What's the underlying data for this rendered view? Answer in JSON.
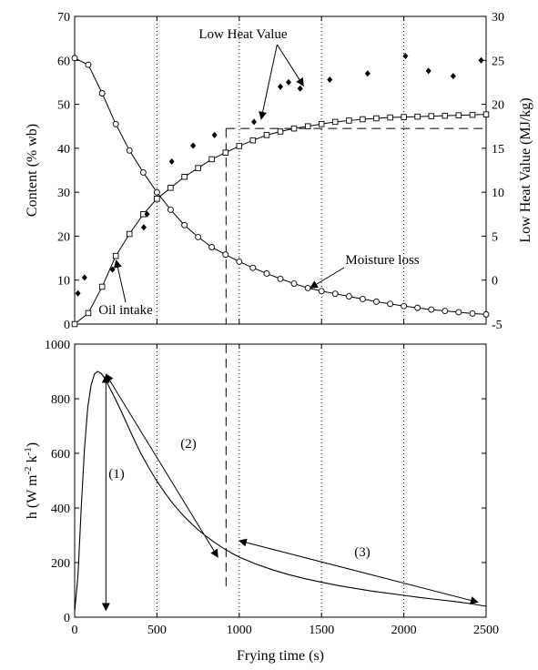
{
  "chart_data": [
    {
      "type": "line",
      "title": "",
      "xlabel": "",
      "ylabel": "Content (% wb)",
      "y2label": "Low Heat Value (MJ/kg)",
      "xlim": [
        0,
        2500
      ],
      "ylim": [
        0,
        70
      ],
      "y2lim": [
        -5,
        30
      ],
      "x_ticks": [
        "0",
        "500",
        "1000",
        "1500",
        "2000",
        "2500"
      ],
      "y_ticks": [
        "0",
        "10",
        "20",
        "30",
        "40",
        "50",
        "60",
        "70"
      ],
      "y2_ticks": [
        "-5",
        "0",
        "5",
        "10",
        "15",
        "20",
        "25",
        "30"
      ],
      "grid": "vertical dotted lines at x = 500, 1000, 1500, 2000",
      "series": [
        {
          "name": "Moisture loss",
          "marker": "circle",
          "axis": "left",
          "x": [
            0,
            83,
            167,
            250,
            333,
            417,
            500,
            583,
            667,
            750,
            833,
            917,
            1000,
            1083,
            1167,
            1250,
            1333,
            1417,
            1500,
            1583,
            1667,
            1750,
            1833,
            1917,
            2000,
            2083,
            2167,
            2250,
            2333,
            2417,
            2500
          ],
          "values": [
            60.5,
            59.0,
            52.5,
            45.5,
            39.5,
            34.5,
            30.0,
            26.0,
            22.5,
            19.8,
            17.5,
            15.8,
            14.2,
            12.8,
            11.5,
            10.3,
            9.2,
            8.2,
            7.5,
            6.9,
            6.3,
            5.7,
            5.1,
            4.6,
            4.1,
            3.7,
            3.3,
            3.0,
            2.7,
            2.4,
            2.2
          ]
        },
        {
          "name": "Oil intake",
          "marker": "square",
          "axis": "left",
          "x": [
            0,
            83,
            167,
            250,
            333,
            417,
            500,
            583,
            667,
            750,
            833,
            917,
            1000,
            1083,
            1167,
            1250,
            1333,
            1417,
            1500,
            1583,
            1667,
            1750,
            1833,
            1917,
            2000,
            2083,
            2167,
            2250,
            2333,
            2417,
            2500
          ],
          "values": [
            0,
            2.5,
            8.5,
            15.5,
            20.5,
            25.0,
            28.5,
            31.0,
            33.5,
            35.5,
            37.5,
            39.0,
            40.5,
            41.8,
            43.0,
            43.8,
            44.5,
            45.0,
            45.5,
            46.0,
            46.3,
            46.6,
            46.8,
            47.0,
            47.1,
            47.2,
            47.3,
            47.4,
            47.5,
            47.6,
            47.7
          ]
        },
        {
          "name": "Low Heat Value",
          "marker": "diamond",
          "axis": "right",
          "x": [
            20,
            60,
            230,
            420,
            440,
            590,
            720,
            850,
            1090,
            1250,
            1300,
            1370,
            1550,
            1780,
            2010,
            2150,
            2300,
            2470
          ],
          "values": [
            -1.5,
            0.3,
            1.2,
            6.0,
            7.5,
            13.5,
            15.3,
            16.5,
            18.0,
            22.0,
            22.5,
            21.8,
            22.8,
            23.5,
            25.5,
            23.8,
            23.2,
            25.0
          ]
        }
      ],
      "reference_lines": {
        "vertical_x": 920,
        "horizontal_y": 44.5
      },
      "annotations": [
        {
          "text": "Low Heat Value",
          "points_to": [
            [
              1100,
              18.0
            ],
            [
              1390,
              21.8
            ]
          ]
        },
        {
          "text": "Moisture loss",
          "points_to": [
            [
              1420,
              8.0
            ]
          ]
        },
        {
          "text": "Oil intake",
          "points_to": [
            [
              230,
              17.0
            ]
          ]
        }
      ]
    },
    {
      "type": "line",
      "title": "",
      "xlabel": "Frying time (s)",
      "ylabel_parts": {
        "base": "h (W m",
        "exp1": "-2",
        "mid": " k",
        "exp2": "-1",
        "end": ")"
      },
      "xlim": [
        0,
        2500
      ],
      "ylim": [
        0,
        1000
      ],
      "x_ticks": [
        "0",
        "500",
        "1000",
        "1500",
        "2000",
        "2500"
      ],
      "y_ticks": [
        "0",
        "200",
        "400",
        "600",
        "800",
        "1000"
      ],
      "grid": "vertical dotted lines at x = 500, 1000, 1500, 2000",
      "series": [
        {
          "name": "",
          "x": [
            0,
            20,
            40,
            60,
            80,
            100,
            120,
            140,
            160,
            180,
            200,
            240,
            280,
            320,
            360,
            400,
            450,
            500,
            550,
            600,
            650,
            700,
            750,
            800,
            850,
            900,
            950,
            1000,
            1100,
            1200,
            1300,
            1400,
            1500,
            1600,
            1700,
            1800,
            1900,
            2000,
            2100,
            2200,
            2300,
            2400,
            2500
          ],
          "values": [
            20,
            150,
            400,
            620,
            770,
            850,
            890,
            900,
            893,
            878,
            855,
            808,
            758,
            705,
            652,
            602,
            548,
            498,
            454,
            414,
            379,
            348,
            320,
            296,
            274,
            254,
            236,
            220,
            195,
            174,
            156,
            141,
            128,
            116,
            106,
            96,
            88,
            80,
            72,
            65,
            58,
            50,
            40
          ]
        }
      ],
      "annotations": [
        {
          "text": "(1)",
          "arrow_from": [
            190,
            25
          ],
          "arrow_to": [
            190,
            885
          ]
        },
        {
          "text": "(2)",
          "arrow_from": [
            190,
            890
          ],
          "arrow_to": [
            870,
            220
          ]
        },
        {
          "text": "(3)",
          "arrow_from": [
            1000,
            280
          ],
          "arrow_to": [
            2450,
            55
          ]
        }
      ],
      "reference_lines": {
        "vertical_x": 920
      }
    }
  ]
}
